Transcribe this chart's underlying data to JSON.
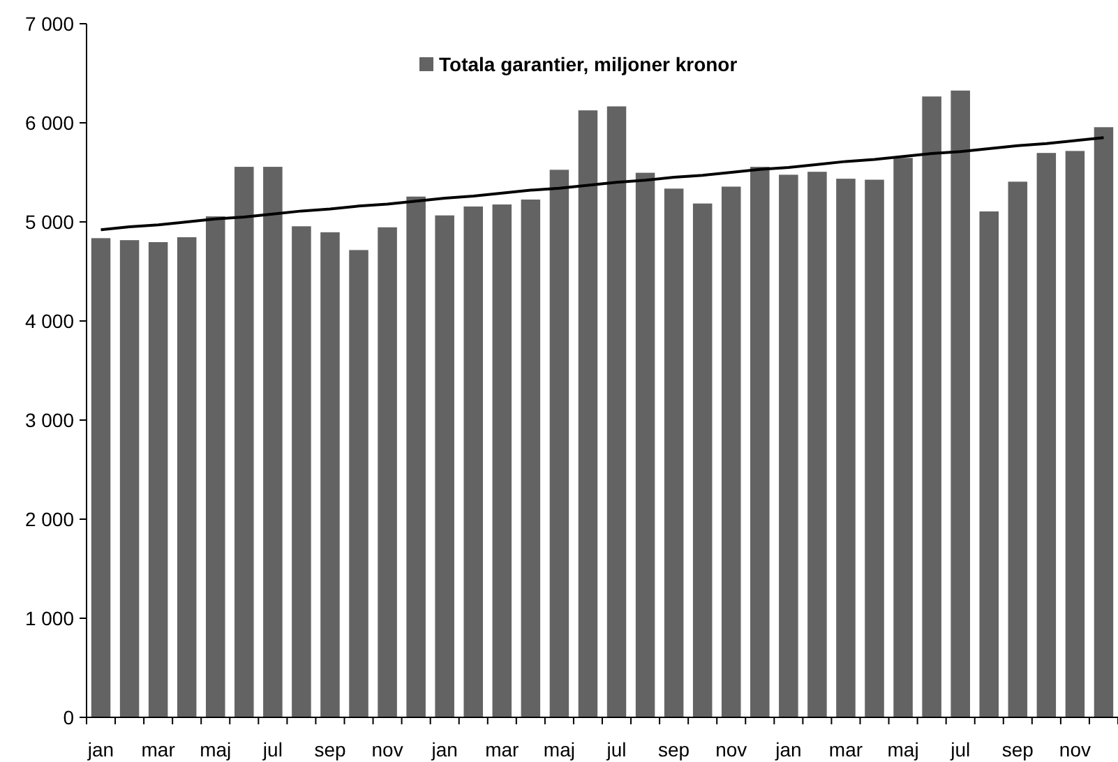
{
  "chart_data": {
    "type": "bar",
    "categories": [
      "jan",
      null,
      "mar",
      null,
      "maj",
      null,
      "jul",
      null,
      "sep",
      null,
      "nov",
      null,
      "jan",
      null,
      "mar",
      null,
      "maj",
      null,
      "jul",
      null,
      "sep",
      null,
      "nov",
      null,
      "jan",
      null,
      "mar",
      null,
      "maj",
      null,
      "jul",
      null,
      "sep",
      null,
      "nov",
      null
    ],
    "series": [
      {
        "name": "Totala garantier, miljoner kronor",
        "color": "#636363",
        "values": [
          4840,
          4820,
          4800,
          4850,
          5060,
          5560,
          5560,
          4960,
          4900,
          4720,
          4950,
          5260,
          5070,
          5160,
          5180,
          5230,
          5530,
          6130,
          6170,
          5500,
          5340,
          5190,
          5360,
          5560,
          5480,
          5510,
          5440,
          5430,
          5650,
          6270,
          6330,
          5110,
          5410,
          5700,
          5720,
          5960
        ]
      },
      {
        "type": "line",
        "color": "#000000",
        "values": [
          4920,
          4950,
          4970,
          5000,
          5030,
          5050,
          5080,
          5110,
          5130,
          5160,
          5180,
          5210,
          5240,
          5260,
          5290,
          5320,
          5340,
          5370,
          5400,
          5420,
          5450,
          5470,
          5500,
          5530,
          5550,
          5580,
          5610,
          5630,
          5660,
          5690,
          5710,
          5740,
          5770,
          5790,
          5820,
          5850
        ]
      }
    ],
    "ylim": [
      0,
      7000
    ],
    "yticks": [
      0,
      {
        "value": 1000,
        "label": "1 000"
      },
      {
        "value": 2000,
        "label": "2 000"
      },
      {
        "value": 3000,
        "label": "3 000"
      },
      {
        "value": 4000,
        "label": "4 000"
      },
      {
        "value": 5000,
        "label": "5 000"
      },
      {
        "value": 6000,
        "label": "6 000"
      },
      {
        "value": 7000,
        "label": "7 000"
      }
    ],
    "legend": "top",
    "marker": "none",
    "line_style": "solid"
  }
}
